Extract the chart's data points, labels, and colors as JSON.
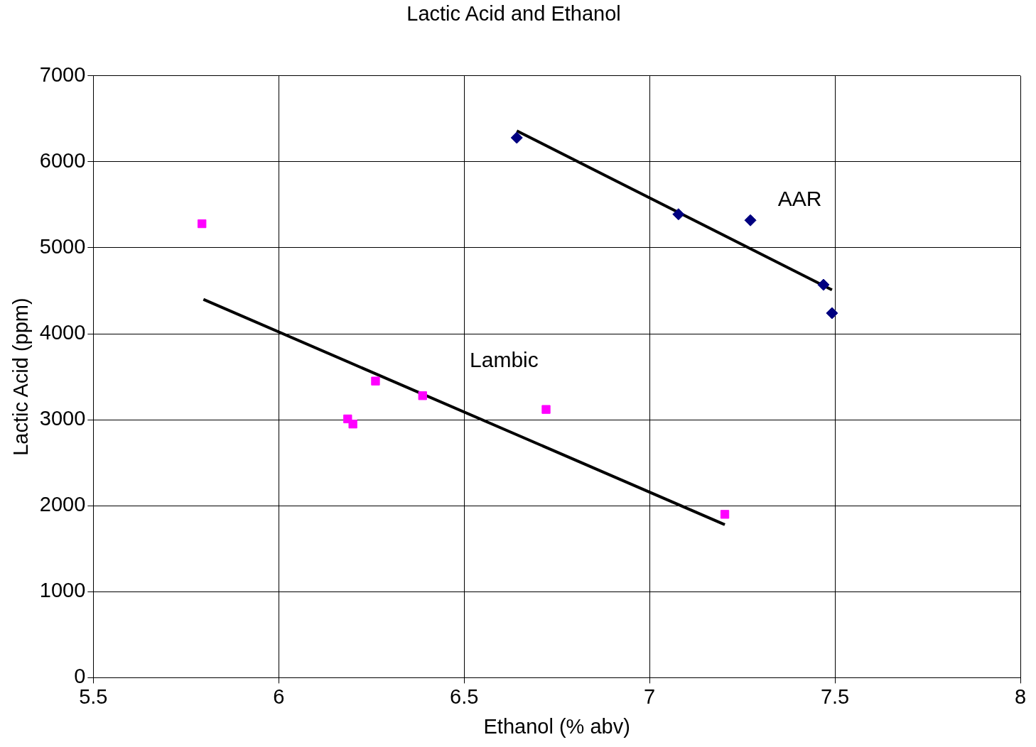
{
  "chart_data": {
    "type": "scatter",
    "title": "Lactic Acid and Ethanol",
    "xlabel": "Ethanol (% abv)",
    "ylabel": "Lactic Acid (ppm)",
    "series": [
      {
        "name": "AAR",
        "color": "#000080",
        "marker": "diamond",
        "x": [
          6.642,
          7.078,
          7.272,
          7.469,
          7.492
        ],
        "values": [
          6280,
          5390,
          5320,
          4570,
          4240
        ]
      },
      {
        "name": "Lambic",
        "color": "#ff00ff",
        "marker": "square",
        "x": [
          5.793,
          6.186,
          6.2,
          6.261,
          6.388,
          6.721,
          7.203
        ],
        "values": [
          5280,
          3010,
          2950,
          3450,
          3280,
          3120,
          1900
        ]
      },
      {
        "type": "line",
        "color": "#000000",
        "marker": "none",
        "x": [
          6.642,
          7.492
        ],
        "values": [
          6360,
          4510
        ]
      },
      {
        "type": "line",
        "color": "#000000",
        "marker": "none",
        "x": [
          5.797,
          7.203
        ],
        "values": [
          4400,
          1780
        ]
      }
    ],
    "xlim": [
      5.5,
      8
    ],
    "xticks": [
      5.5,
      6,
      6.5,
      7,
      7.5,
      8
    ],
    "ylim": [
      0,
      7000
    ],
    "yticks": [
      0,
      1000,
      2000,
      3000,
      4000,
      5000,
      6000,
      7000
    ],
    "grid": true,
    "legend": false
  }
}
